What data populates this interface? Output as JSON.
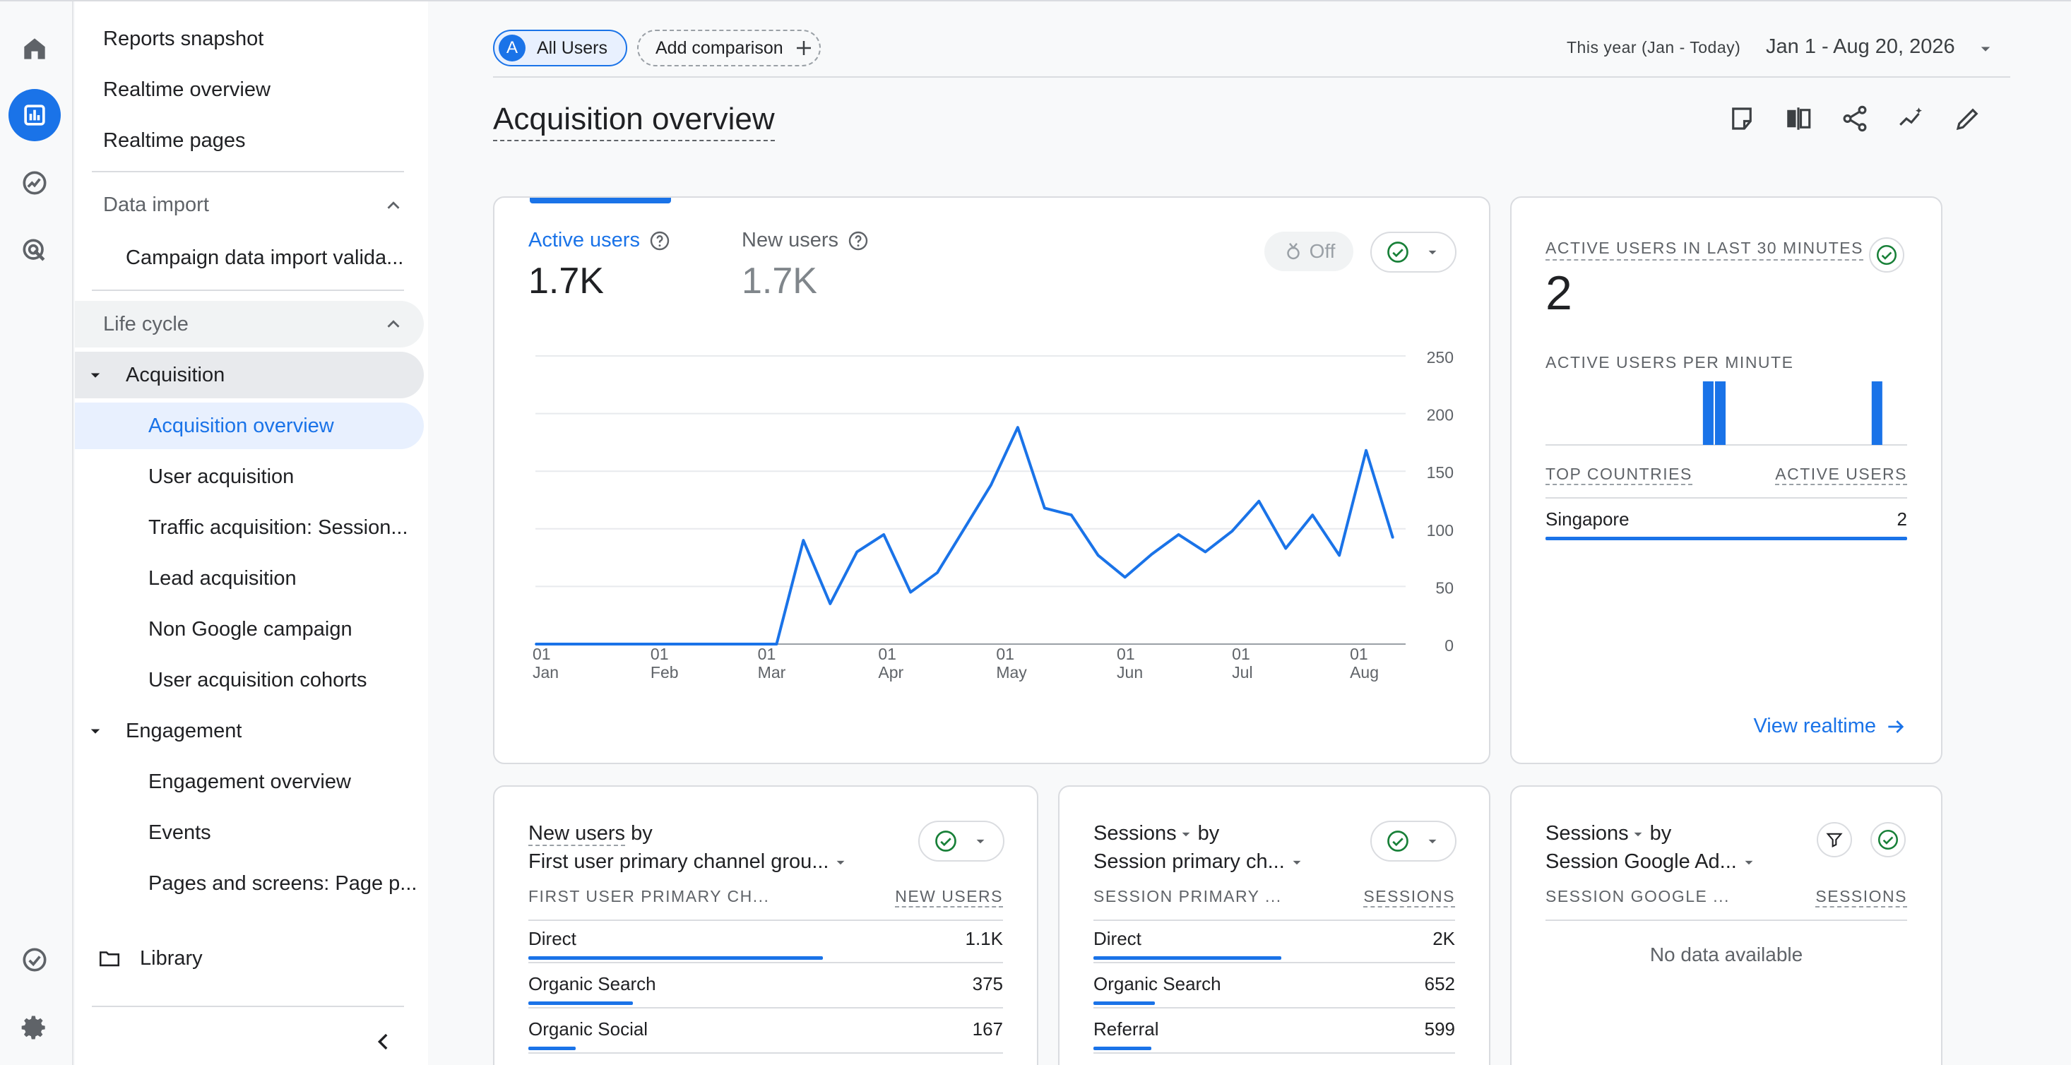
{
  "rail": {
    "icons": [
      "home-icon",
      "reports-icon",
      "explore-icon",
      "advertising-icon",
      "configure-icon",
      "settings-icon"
    ]
  },
  "sidebar": {
    "top_items": [
      "Reports snapshot",
      "Realtime overview",
      "Realtime pages"
    ],
    "data_import": {
      "label": "Data import",
      "items": [
        "Campaign data import valida..."
      ]
    },
    "life_cycle": {
      "label": "Life cycle"
    },
    "acquisition": {
      "label": "Acquisition",
      "items": [
        "Acquisition overview",
        "User acquisition",
        "Traffic acquisition: Session...",
        "Lead acquisition",
        "Non Google campaign",
        "User acquisition cohorts"
      ]
    },
    "engagement": {
      "label": "Engagement",
      "items": [
        "Engagement overview",
        "Events",
        "Pages and screens: Page p..."
      ]
    },
    "library": "Library"
  },
  "header": {
    "segment_letter": "A",
    "segment_label": "All Users",
    "add_comparison": "Add comparison",
    "date_preset": "This year (Jan - Today)",
    "date_range": "Jan 1 - Aug 20, 2026",
    "page_title": "Acquisition overview"
  },
  "main_card": {
    "metric1_label": "Active users",
    "metric1_value": "1.7K",
    "metric2_label": "New users",
    "metric2_value": "1.7K",
    "toggle_label": "Off"
  },
  "chart_data": {
    "type": "line",
    "series": [
      {
        "values": [
          0,
          0,
          0,
          0,
          0,
          0,
          0,
          0,
          0,
          0,
          90,
          35,
          80,
          95,
          45,
          62,
          100,
          138,
          188,
          118,
          112,
          77,
          58,
          78,
          95,
          80,
          98,
          124,
          83,
          112,
          77,
          168,
          92
        ]
      }
    ],
    "x_ticks": [
      {
        "day": "01",
        "month": "Jan",
        "idx": 0
      },
      {
        "day": "01",
        "month": "Feb",
        "idx": 4.4
      },
      {
        "day": "01",
        "month": "Mar",
        "idx": 8.4
      },
      {
        "day": "01",
        "month": "Apr",
        "idx": 12.9
      },
      {
        "day": "01",
        "month": "May",
        "idx": 17.3
      },
      {
        "day": "01",
        "month": "Jun",
        "idx": 21.8
      },
      {
        "day": "01",
        "month": "Jul",
        "idx": 26.1
      },
      {
        "day": "01",
        "month": "Aug",
        "idx": 30.5
      }
    ],
    "y_ticks": [
      "250",
      "200",
      "150",
      "100",
      "50",
      "0"
    ],
    "ylim": [
      0,
      250
    ],
    "color": "#1a73e8"
  },
  "realtime_card": {
    "title": "ACTIVE USERS IN LAST 30 MINUTES",
    "value": "2",
    "per_minute_label": "ACTIVE USERS PER MINUTE",
    "per_minute": [
      0,
      0,
      0,
      0,
      0,
      0,
      0,
      0,
      0,
      0,
      0,
      0,
      0,
      1,
      1,
      0,
      0,
      0,
      0,
      0,
      0,
      0,
      0,
      0,
      0,
      0,
      0,
      1,
      0,
      0
    ],
    "col1": "TOP COUNTRIES",
    "col2": "ACTIVE USERS",
    "rows": [
      {
        "label": "Singapore",
        "value": "2"
      }
    ],
    "link": "View realtime"
  },
  "card_new_users": {
    "title_metric": "New users",
    "title_by": "by",
    "dimension": "First user primary channel grou...",
    "col1": "FIRST USER PRIMARY CH...",
    "col2": "NEW USERS",
    "rows": [
      {
        "label": "Direct",
        "value": "1.1K",
        "share": 0.62
      },
      {
        "label": "Organic Search",
        "value": "375",
        "share": 0.22
      },
      {
        "label": "Organic Social",
        "value": "167",
        "share": 0.1
      }
    ]
  },
  "card_sessions": {
    "title_metric": "Sessions",
    "title_by": "by",
    "dimension": "Session primary ch...",
    "col1": "SESSION PRIMARY ...",
    "col2": "SESSIONS",
    "rows": [
      {
        "label": "Direct",
        "value": "2K",
        "share": 0.52
      },
      {
        "label": "Organic Search",
        "value": "652",
        "share": 0.17
      },
      {
        "label": "Referral",
        "value": "599",
        "share": 0.16
      }
    ]
  },
  "card_sessions_ads": {
    "title_metric": "Sessions",
    "title_by": "by",
    "dimension": "Session Google Ad...",
    "col1": "SESSION GOOGLE ...",
    "col2": "SESSIONS",
    "empty": "No data available"
  }
}
